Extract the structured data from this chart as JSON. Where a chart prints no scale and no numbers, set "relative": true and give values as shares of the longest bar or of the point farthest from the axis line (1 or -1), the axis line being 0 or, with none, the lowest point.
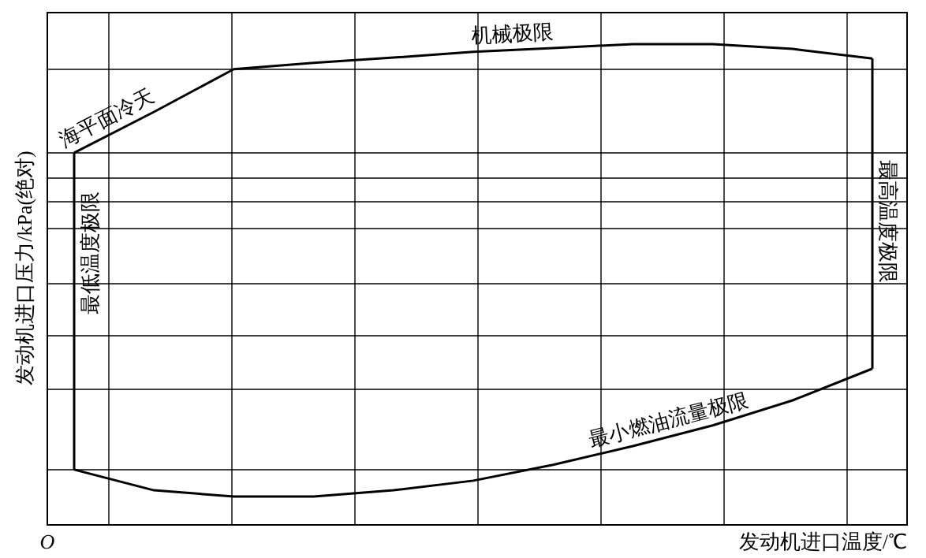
{
  "chart_data": {
    "type": "line",
    "relative": true,
    "xlabel": "发动机进口温度/℃",
    "ylabel": "发动机进口压力/kPa(绝对)",
    "grid": true,
    "marker": "none",
    "line_style": "solid",
    "annotations": [
      "O",
      "最低温度极限",
      "最高温度极限",
      "海平面冷天",
      "机械极限"
    ],
    "categories": [
      null,
      null,
      null,
      null,
      null,
      null,
      null,
      null,
      null,
      null,
      null
    ],
    "series": [
      {
        "color": "#000000",
        "values": [
          0.774,
          0.859,
          0.948,
          0.961,
          0.972,
          0.984,
          0.992,
          1,
          1,
          0.99,
          0.97
        ]
      },
      {
        "name": "最小燃油流量极限",
        "color": "#000000",
        "values": [
          0.115,
          0.072,
          0.059,
          0.059,
          0.072,
          0.092,
          0.125,
          0.164,
          0.207,
          0.259,
          0.325
        ]
      }
    ]
  }
}
